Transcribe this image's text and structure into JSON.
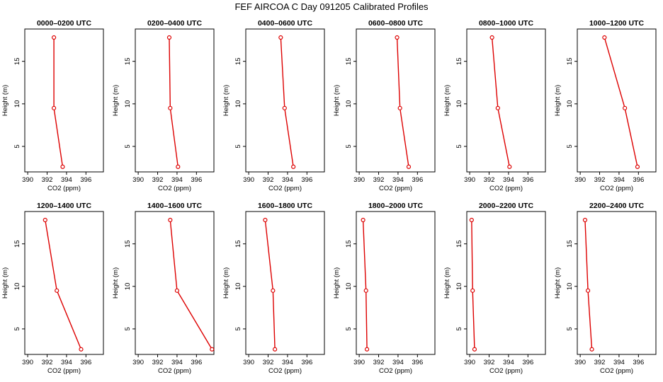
{
  "title": "FEF AIRCOA C  Day 091205  Calibrated Profiles",
  "colors": {
    "series": "#dd0000",
    "axis": "#000000",
    "background": "#ffffff"
  },
  "chart_data": [
    {
      "type": "line",
      "title": "0000–0200 UTC",
      "xlabel": "CO2 (ppm)",
      "ylabel": "Height (m)",
      "x": [
        392.7,
        392.7,
        393.6
      ],
      "y": [
        17.8,
        9.5,
        2.6
      ],
      "xticks": [
        390,
        392,
        394,
        396
      ],
      "yticks": [
        5,
        10,
        15
      ],
      "xlim": [
        389.7,
        397.8
      ],
      "ylim": [
        2.0,
        18.8
      ]
    },
    {
      "type": "line",
      "title": "0200–0400 UTC",
      "xlabel": "CO2 (ppm)",
      "ylabel": "Height (m)",
      "x": [
        393.2,
        393.3,
        394.1
      ],
      "y": [
        17.8,
        9.5,
        2.6
      ],
      "xticks": [
        390,
        392,
        394,
        396
      ],
      "yticks": [
        5,
        10,
        15
      ],
      "xlim": [
        389.7,
        397.8
      ],
      "ylim": [
        2.0,
        18.8
      ]
    },
    {
      "type": "line",
      "title": "0400–0600 UTC",
      "xlabel": "CO2 (ppm)",
      "ylabel": "Height (m)",
      "x": [
        393.3,
        393.7,
        394.6
      ],
      "y": [
        17.8,
        9.5,
        2.6
      ],
      "xticks": [
        390,
        392,
        394,
        396
      ],
      "yticks": [
        5,
        10,
        15
      ],
      "xlim": [
        389.7,
        397.8
      ],
      "ylim": [
        2.0,
        18.8
      ]
    },
    {
      "type": "line",
      "title": "0600–0800 UTC",
      "xlabel": "CO2 (ppm)",
      "ylabel": "Height (m)",
      "x": [
        393.9,
        394.2,
        395.1
      ],
      "y": [
        17.8,
        9.5,
        2.6
      ],
      "xticks": [
        390,
        392,
        394,
        396
      ],
      "yticks": [
        5,
        10,
        15
      ],
      "xlim": [
        389.7,
        397.8
      ],
      "ylim": [
        2.0,
        18.8
      ]
    },
    {
      "type": "line",
      "title": "0800–1000 UTC",
      "xlabel": "CO2 (ppm)",
      "ylabel": "Height (m)",
      "x": [
        392.3,
        392.9,
        394.1
      ],
      "y": [
        17.8,
        9.5,
        2.6
      ],
      "xticks": [
        390,
        392,
        394,
        396
      ],
      "yticks": [
        5,
        10,
        15
      ],
      "xlim": [
        389.7,
        397.8
      ],
      "ylim": [
        2.0,
        18.8
      ]
    },
    {
      "type": "line",
      "title": "1000–1200 UTC",
      "xlabel": "CO2 (ppm)",
      "ylabel": "Height (m)",
      "x": [
        392.5,
        394.6,
        395.9
      ],
      "y": [
        17.8,
        9.5,
        2.6
      ],
      "xticks": [
        390,
        392,
        394,
        396
      ],
      "yticks": [
        5,
        10,
        15
      ],
      "xlim": [
        389.7,
        397.8
      ],
      "ylim": [
        2.0,
        18.8
      ]
    },
    {
      "type": "line",
      "title": "1200–1400 UTC",
      "xlabel": "CO2 (ppm)",
      "ylabel": "Height (m)",
      "x": [
        391.8,
        393.0,
        395.5
      ],
      "y": [
        17.8,
        9.5,
        2.6
      ],
      "xticks": [
        390,
        392,
        394,
        396
      ],
      "yticks": [
        5,
        10,
        15
      ],
      "xlim": [
        389.7,
        397.8
      ],
      "ylim": [
        2.0,
        18.8
      ]
    },
    {
      "type": "line",
      "title": "1400–1600 UTC",
      "xlabel": "CO2 (ppm)",
      "ylabel": "Height (m)",
      "x": [
        393.3,
        394.0,
        397.6
      ],
      "y": [
        17.8,
        9.5,
        2.6
      ],
      "xticks": [
        390,
        392,
        394,
        396
      ],
      "yticks": [
        5,
        10,
        15
      ],
      "xlim": [
        389.7,
        397.8
      ],
      "ylim": [
        2.0,
        18.8
      ]
    },
    {
      "type": "line",
      "title": "1600–1800 UTC",
      "xlabel": "CO2 (ppm)",
      "ylabel": "Height (m)",
      "x": [
        391.7,
        392.5,
        392.7
      ],
      "y": [
        17.8,
        9.5,
        2.6
      ],
      "xticks": [
        390,
        392,
        394,
        396
      ],
      "yticks": [
        5,
        10,
        15
      ],
      "xlim": [
        389.7,
        397.8
      ],
      "ylim": [
        2.0,
        18.8
      ]
    },
    {
      "type": "line",
      "title": "1800–2000 UTC",
      "xlabel": "CO2 (ppm)",
      "ylabel": "Height (m)",
      "x": [
        390.4,
        390.7,
        390.8
      ],
      "y": [
        17.8,
        9.5,
        2.6
      ],
      "xticks": [
        390,
        392,
        394,
        396
      ],
      "yticks": [
        5,
        10,
        15
      ],
      "xlim": [
        389.7,
        397.8
      ],
      "ylim": [
        2.0,
        18.8
      ]
    },
    {
      "type": "line",
      "title": "2000–2200 UTC",
      "xlabel": "CO2 (ppm)",
      "ylabel": "Height (m)",
      "x": [
        390.2,
        390.3,
        390.5
      ],
      "y": [
        17.8,
        9.5,
        2.6
      ],
      "xticks": [
        390,
        392,
        394,
        396
      ],
      "yticks": [
        5,
        10,
        15
      ],
      "xlim": [
        389.7,
        397.8
      ],
      "ylim": [
        2.0,
        18.8
      ]
    },
    {
      "type": "line",
      "title": "2200–2400 UTC",
      "xlabel": "CO2 (ppm)",
      "ylabel": "Height (m)",
      "x": [
        390.5,
        390.8,
        391.2
      ],
      "y": [
        17.8,
        9.5,
        2.6
      ],
      "xticks": [
        390,
        392,
        394,
        396
      ],
      "yticks": [
        5,
        10,
        15
      ],
      "xlim": [
        389.7,
        397.8
      ],
      "ylim": [
        2.0,
        18.8
      ]
    }
  ]
}
